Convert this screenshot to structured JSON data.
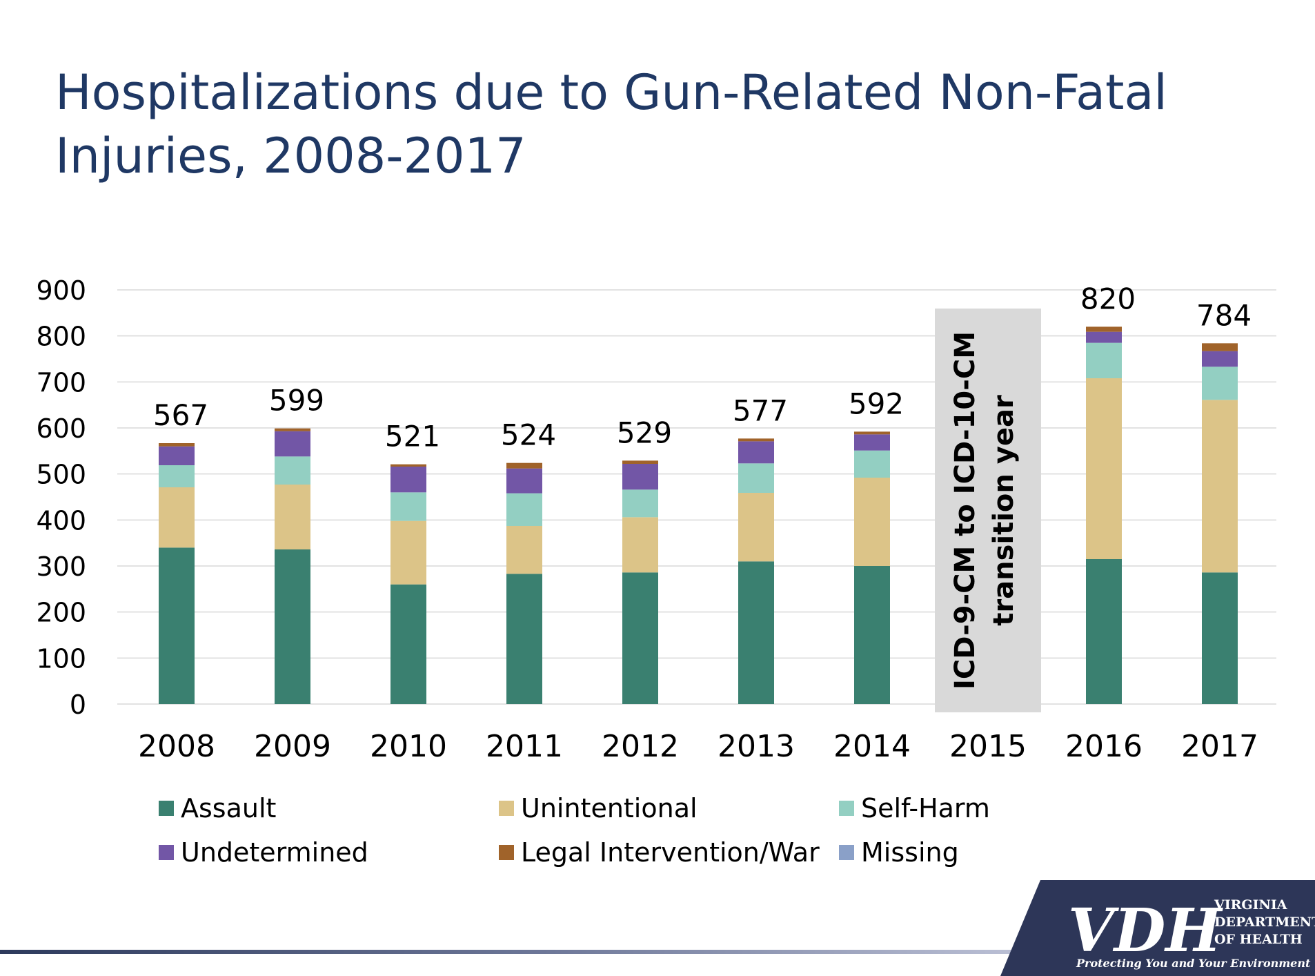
{
  "title": "Hospitalizations due to Gun-Related Non-Fatal Injuries, 2008-2017",
  "chart_data": {
    "type": "bar",
    "stacked": true,
    "categories": [
      "2008",
      "2009",
      "2010",
      "2011",
      "2012",
      "2013",
      "2014",
      "2015",
      "2016",
      "2017"
    ],
    "ylim": [
      0,
      900
    ],
    "yticks": [
      0,
      100,
      200,
      300,
      400,
      500,
      600,
      700,
      800,
      900
    ],
    "grid": true,
    "legend_position": "bottom",
    "series": [
      {
        "name": "Assault",
        "color": "#3a8070",
        "values": [
          340,
          336,
          260,
          283,
          286,
          310,
          300,
          null,
          315,
          286
        ]
      },
      {
        "name": "Unintentional",
        "color": "#dcc488",
        "values": [
          131,
          141,
          138,
          104,
          120,
          149,
          192,
          null,
          393,
          375
        ]
      },
      {
        "name": "Self-Harm",
        "color": "#93cfc2",
        "values": [
          48,
          61,
          62,
          71,
          60,
          64,
          59,
          null,
          77,
          72
        ]
      },
      {
        "name": "Undetermined",
        "color": "#7256a6",
        "values": [
          41,
          55,
          56,
          54,
          56,
          48,
          35,
          null,
          24,
          34
        ]
      },
      {
        "name": "Legal Intervention/War",
        "color": "#a0632a",
        "values": [
          7,
          6,
          5,
          12,
          7,
          6,
          6,
          null,
          11,
          17
        ]
      },
      {
        "name": "Missing",
        "color": "#8aa0c8",
        "values": [
          0,
          0,
          0,
          0,
          0,
          0,
          0,
          null,
          0,
          0
        ]
      }
    ],
    "totals": [
      "567",
      "599",
      "521",
      "524",
      "529",
      "577",
      "592",
      "",
      "820",
      "784"
    ],
    "annotation": {
      "category": "2015",
      "text_lines": [
        "ICD-9-CM to ICD-10-CM",
        "transition year"
      ]
    }
  },
  "logo": {
    "mark": "VDH",
    "name_lines": [
      "VIRGINIA",
      "DEPARTMENT",
      "OF HEALTH"
    ],
    "tagline": "Protecting You and Your Environment"
  }
}
